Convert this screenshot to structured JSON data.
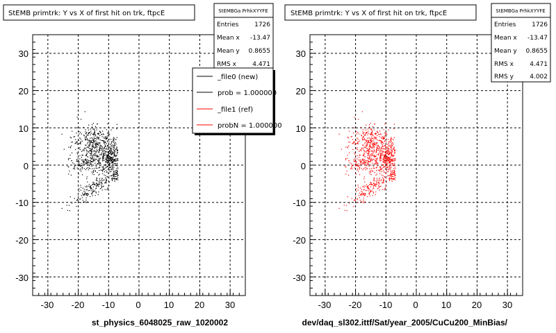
{
  "chart_data": [
    {
      "type": "scatter",
      "title": "StEMB primtrk: Y vs X of first hit on trk, ftpcE",
      "xlabel": "st_physics_6048025_raw_1020002",
      "xlim": [
        -35,
        35
      ],
      "ylim": [
        -35,
        35
      ],
      "xticks": [
        "-30",
        "-20",
        "-10",
        "0",
        "10",
        "20",
        "30"
      ],
      "yticks": [
        "-30",
        "-20",
        "-10",
        "0",
        "10",
        "20",
        "30"
      ],
      "grid": true,
      "series": [
        {
          "color": "#000000",
          "clusters": [
            {
              "cx": -14,
              "cy": 4,
              "sx": 4,
              "sy": 3,
              "n": 480
            },
            {
              "cx": -10,
              "cy": 2,
              "sx": 1.6,
              "sy": 1.8,
              "n": 220
            },
            {
              "cx": -15,
              "cy": 8,
              "sx": 3,
              "sy": 1.5,
              "n": 80
            },
            {
              "cx": -19,
              "cy": 0,
              "sx": 2.5,
              "sy": 1.2,
              "n": 60
            },
            {
              "cx": -15,
              "cy": -6,
              "sx": 4,
              "sy": 1.3,
              "n": 170,
              "slope": 0.5
            },
            {
              "cx": -8,
              "cy": -2.5,
              "sx": 1,
              "sy": 0.8,
              "n": 50
            }
          ]
        }
      ],
      "stats": {
        "header": "StEMBGa PrhkXYYFE",
        "rows": [
          {
            "label": "Entries",
            "value": "1726"
          },
          {
            "label": "Mean x",
            "value": "-13.47"
          },
          {
            "label": "Mean y",
            "value": "0.8655"
          },
          {
            "label": "RMS x",
            "value": "4.471"
          }
        ]
      },
      "legend": [
        {
          "label": "_file0 (new)",
          "color": "#000000"
        },
        {
          "label": "prob = 1.000000",
          "color": "#000000"
        },
        {
          "label": "_file1 (ref)",
          "color": "#ff0000"
        },
        {
          "label": "probN = 1.000000",
          "color": "#ff0000"
        }
      ],
      "legend_position": "top-right"
    },
    {
      "type": "scatter",
      "title": "StEMB primtrk: Y vs X of first hit on trk, ftpcE",
      "xlabel": "dev/daq_sl302.ittf/Sat/year_2005/CuCu200_MinBias/",
      "xlim": [
        -35,
        35
      ],
      "ylim": [
        -35,
        35
      ],
      "xticks": [
        "-30",
        "-20",
        "-10",
        "0",
        "10",
        "20",
        "30"
      ],
      "yticks": [
        "-30",
        "-20",
        "-10",
        "0",
        "10",
        "20",
        "30"
      ],
      "grid": true,
      "series": [
        {
          "color": "#ff0000",
          "clusters": [
            {
              "cx": -14,
              "cy": 4,
              "sx": 4,
              "sy": 3,
              "n": 480
            },
            {
              "cx": -10,
              "cy": 2,
              "sx": 1.6,
              "sy": 1.8,
              "n": 220
            },
            {
              "cx": -15,
              "cy": 8,
              "sx": 3,
              "sy": 1.5,
              "n": 80
            },
            {
              "cx": -19,
              "cy": 0,
              "sx": 2.5,
              "sy": 1.2,
              "n": 60
            },
            {
              "cx": -15,
              "cy": -6,
              "sx": 4,
              "sy": 1.3,
              "n": 170,
              "slope": 0.5
            },
            {
              "cx": -8,
              "cy": -2.5,
              "sx": 1,
              "sy": 0.8,
              "n": 50
            }
          ]
        }
      ],
      "stats": {
        "header": "StEMBGa PrhkXYYFE",
        "rows": [
          {
            "label": "Entries",
            "value": "1726"
          },
          {
            "label": "Mean x",
            "value": "-13.47"
          },
          {
            "label": "Mean y",
            "value": "0.8655"
          },
          {
            "label": "RMS x",
            "value": "4.471"
          },
          {
            "label": "RMS y",
            "value": "4.002"
          }
        ]
      }
    }
  ]
}
